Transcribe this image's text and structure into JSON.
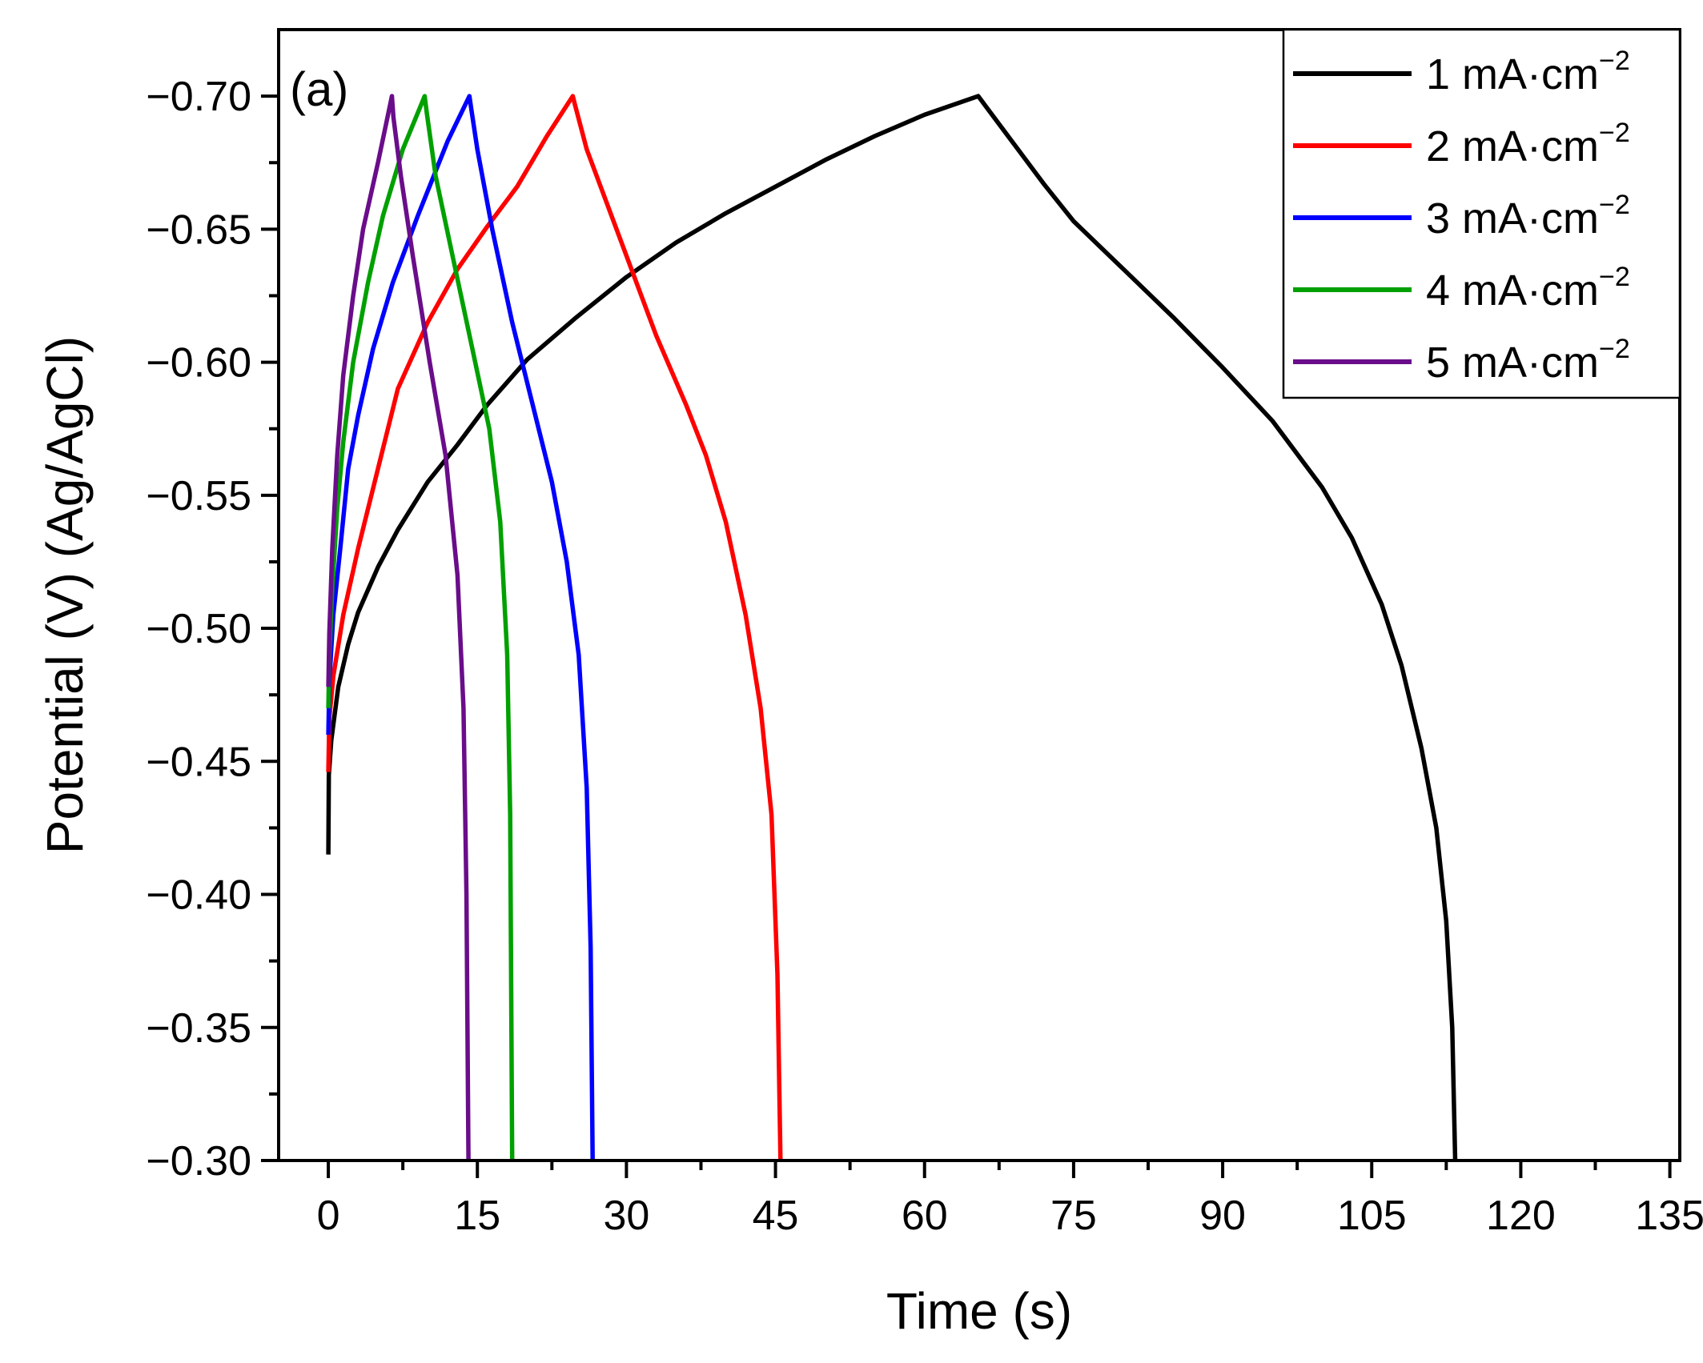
{
  "chart_data": {
    "type": "line",
    "panel_label": "(a)",
    "xlabel": "Time (s)",
    "ylabel": "Potential (V) (Ag/AgCl)",
    "xlim": [
      -5,
      136
    ],
    "ylim": [
      -0.3,
      -0.725
    ],
    "x_ticks": [
      0,
      15,
      30,
      45,
      60,
      75,
      90,
      105,
      120,
      135
    ],
    "x_tick_labels": [
      "0",
      "15",
      "30",
      "45",
      "60",
      "75",
      "90",
      "105",
      "120",
      "135"
    ],
    "y_ticks": [
      -0.7,
      -0.65,
      -0.6,
      -0.55,
      -0.5,
      -0.45,
      -0.4,
      -0.35,
      -0.3
    ],
    "y_tick_labels": [
      "−0.70",
      "−0.65",
      "−0.60",
      "−0.55",
      "−0.50",
      "−0.45",
      "−0.40",
      "−0.35",
      "−0.30"
    ],
    "legend_position": "top-right",
    "series": [
      {
        "name": "1 mA·cm",
        "superscript": "−2",
        "color": "#000000",
        "points": [
          [
            0,
            -0.415
          ],
          [
            0.05,
            -0.445
          ],
          [
            0.3,
            -0.458
          ],
          [
            1,
            -0.478
          ],
          [
            2,
            -0.494
          ],
          [
            3,
            -0.506
          ],
          [
            5,
            -0.523
          ],
          [
            7,
            -0.537
          ],
          [
            10,
            -0.555
          ],
          [
            13,
            -0.569
          ],
          [
            16,
            -0.584
          ],
          [
            20,
            -0.601
          ],
          [
            25,
            -0.617
          ],
          [
            30,
            -0.632
          ],
          [
            35,
            -0.645
          ],
          [
            40,
            -0.656
          ],
          [
            45,
            -0.666
          ],
          [
            50,
            -0.676
          ],
          [
            55,
            -0.685
          ],
          [
            60,
            -0.693
          ],
          [
            65.4,
            -0.7
          ],
          [
            66,
            -0.697
          ],
          [
            68,
            -0.687
          ],
          [
            70,
            -0.677
          ],
          [
            72,
            -0.667
          ],
          [
            75,
            -0.653
          ],
          [
            80,
            -0.635
          ],
          [
            85,
            -0.617
          ],
          [
            90,
            -0.598
          ],
          [
            95,
            -0.578
          ],
          [
            100,
            -0.553
          ],
          [
            103,
            -0.534
          ],
          [
            106,
            -0.509
          ],
          [
            108,
            -0.486
          ],
          [
            110,
            -0.455
          ],
          [
            111.5,
            -0.425
          ],
          [
            112.5,
            -0.39
          ],
          [
            113.1,
            -0.35
          ],
          [
            113.4,
            -0.3
          ]
        ]
      },
      {
        "name": "2 mA·cm",
        "superscript": "−2",
        "color": "#ff0000",
        "points": [
          [
            0,
            -0.446
          ],
          [
            0.1,
            -0.466
          ],
          [
            0.5,
            -0.482
          ],
          [
            1.5,
            -0.505
          ],
          [
            3,
            -0.53
          ],
          [
            5,
            -0.56
          ],
          [
            7,
            -0.59
          ],
          [
            10,
            -0.615
          ],
          [
            13,
            -0.635
          ],
          [
            16,
            -0.651
          ],
          [
            19,
            -0.666
          ],
          [
            22,
            -0.685
          ],
          [
            24.6,
            -0.7
          ],
          [
            24.8,
            -0.697
          ],
          [
            26,
            -0.68
          ],
          [
            28,
            -0.66
          ],
          [
            30,
            -0.64
          ],
          [
            33,
            -0.61
          ],
          [
            36,
            -0.584
          ],
          [
            38,
            -0.565
          ],
          [
            40,
            -0.54
          ],
          [
            42,
            -0.505
          ],
          [
            43.5,
            -0.47
          ],
          [
            44.6,
            -0.43
          ],
          [
            45.2,
            -0.37
          ],
          [
            45.5,
            -0.3
          ]
        ]
      },
      {
        "name": "3 mA·cm",
        "superscript": "−2",
        "color": "#0000ff",
        "points": [
          [
            0,
            -0.46
          ],
          [
            0.1,
            -0.48
          ],
          [
            0.5,
            -0.505
          ],
          [
            1.2,
            -0.53
          ],
          [
            2,
            -0.56
          ],
          [
            3,
            -0.58
          ],
          [
            4.5,
            -0.605
          ],
          [
            6.5,
            -0.63
          ],
          [
            9,
            -0.655
          ],
          [
            12,
            -0.683
          ],
          [
            14.2,
            -0.7
          ],
          [
            14.35,
            -0.696
          ],
          [
            15,
            -0.68
          ],
          [
            16.5,
            -0.65
          ],
          [
            18.5,
            -0.615
          ],
          [
            20.5,
            -0.585
          ],
          [
            22.5,
            -0.555
          ],
          [
            24,
            -0.525
          ],
          [
            25.2,
            -0.49
          ],
          [
            26,
            -0.44
          ],
          [
            26.4,
            -0.38
          ],
          [
            26.6,
            -0.3
          ]
        ]
      },
      {
        "name": "4 mA·cm",
        "superscript": "−2",
        "color": "#00a000",
        "points": [
          [
            0,
            -0.47
          ],
          [
            0.1,
            -0.49
          ],
          [
            0.4,
            -0.515
          ],
          [
            0.9,
            -0.545
          ],
          [
            1.5,
            -0.57
          ],
          [
            2.5,
            -0.6
          ],
          [
            4,
            -0.63
          ],
          [
            5.5,
            -0.655
          ],
          [
            7.5,
            -0.68
          ],
          [
            9.7,
            -0.7
          ],
          [
            9.9,
            -0.694
          ],
          [
            10.8,
            -0.67
          ],
          [
            12.5,
            -0.64
          ],
          [
            14.5,
            -0.605
          ],
          [
            16.2,
            -0.575
          ],
          [
            17.3,
            -0.54
          ],
          [
            18,
            -0.49
          ],
          [
            18.3,
            -0.43
          ],
          [
            18.5,
            -0.3
          ]
        ]
      },
      {
        "name": "5 mA·cm",
        "superscript": "−2",
        "color": "#6a0d8a",
        "points": [
          [
            0,
            -0.478
          ],
          [
            0.1,
            -0.498
          ],
          [
            0.4,
            -0.53
          ],
          [
            0.9,
            -0.565
          ],
          [
            1.5,
            -0.595
          ],
          [
            2.5,
            -0.625
          ],
          [
            3.5,
            -0.65
          ],
          [
            5,
            -0.675
          ],
          [
            6.4,
            -0.7
          ],
          [
            6.55,
            -0.692
          ],
          [
            7.3,
            -0.67
          ],
          [
            8.5,
            -0.64
          ],
          [
            10.2,
            -0.6
          ],
          [
            11.8,
            -0.565
          ],
          [
            13,
            -0.52
          ],
          [
            13.6,
            -0.47
          ],
          [
            13.9,
            -0.4
          ],
          [
            14.1,
            -0.3
          ]
        ]
      }
    ]
  }
}
